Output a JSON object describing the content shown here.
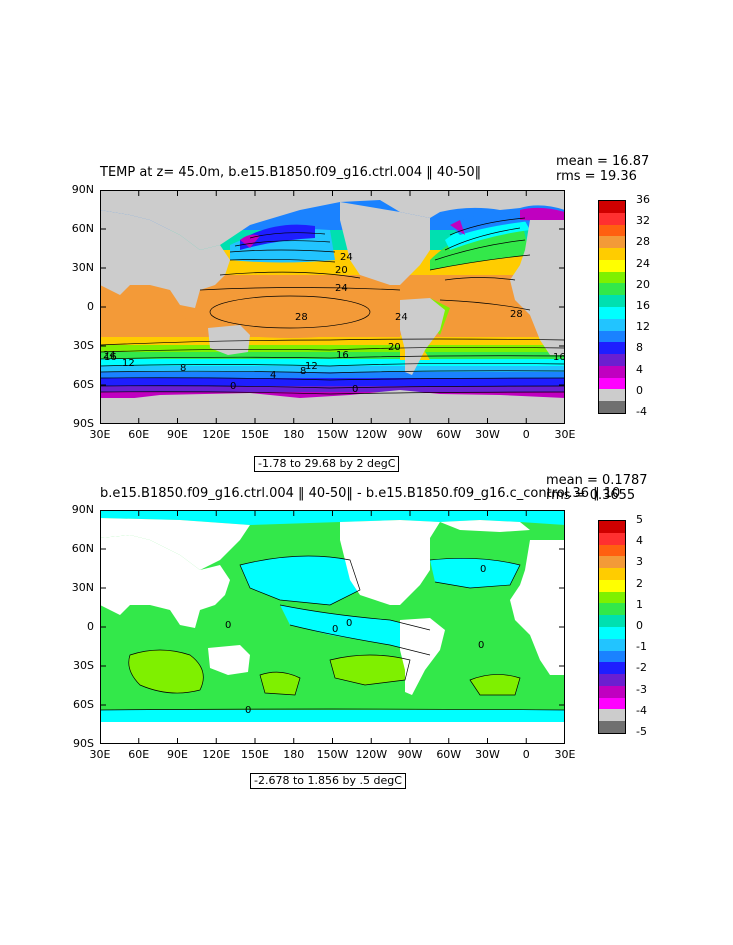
{
  "panel1": {
    "title": "TEMP at z=  45.0m, b.e15.B1850.f09_g16.ctrl.004 ‖ 40-50‖",
    "mean_label": "mean = 16.87",
    "rms_label": "rms = 19.36",
    "range_label": "-1.78 to 29.68 by 2 degC",
    "contour_labels": [
      "28",
      "24",
      "24",
      "20",
      "20",
      "16",
      "16",
      "12",
      "12",
      "8",
      "8",
      "4",
      "0",
      "0",
      "28",
      "24",
      "24",
      "16"
    ],
    "legend": {
      "labels": [
        "36",
        "32",
        "28",
        "24",
        "20",
        "16",
        "12",
        "8",
        "4",
        "0",
        "-4"
      ],
      "colors": [
        "#d00000",
        "#ff3030",
        "#ff6010",
        "#f39a38",
        "#ffcc00",
        "#ffff00",
        "#7ff000",
        "#33e84a",
        "#00e0b0",
        "#00ffff",
        "#22c4ff",
        "#1a82ff",
        "#1e1eff",
        "#6a1fd0",
        "#c000c0",
        "#ff00ff",
        "#cccccc",
        "#707070"
      ]
    }
  },
  "panel2": {
    "title": "b.e15.B1850.f09_g16.ctrl.004 ‖ 40-50‖ - b.e15.B1850.f09_g16.c_control.36 ‖ 10",
    "mean_label": "mean = 0.1787",
    "rms_label": "rms = 0.3655",
    "range_label": "-2.678 to 1.856 by .5 degC",
    "contour_labels": [
      "0",
      "0",
      "0",
      "0",
      "0",
      "0"
    ],
    "legend": {
      "labels": [
        "5",
        "4",
        "3",
        "2",
        "1",
        "0",
        "-1",
        "-2",
        "-3",
        "-4",
        "-5"
      ],
      "colors": [
        "#d00000",
        "#ff3030",
        "#ff6010",
        "#f39a38",
        "#ffcc00",
        "#ffff00",
        "#7ff000",
        "#33e84a",
        "#00e0b0",
        "#00ffff",
        "#22c4ff",
        "#1a82ff",
        "#1e1eff",
        "#6a1fd0",
        "#c000c0",
        "#ff00ff",
        "#cccccc",
        "#707070"
      ]
    }
  },
  "axes": {
    "y_ticks": [
      "90N",
      "60N",
      "30N",
      "0",
      "30S",
      "60S",
      "90S"
    ],
    "x_ticks": [
      "30E",
      "60E",
      "90E",
      "120E",
      "150E",
      "180",
      "150W",
      "120W",
      "90W",
      "60W",
      "30W",
      "0",
      "30E"
    ]
  },
  "colors": {
    "land": "#cccccc",
    "land_diff": "#ffffff",
    "diff_zero": "#33e84a",
    "diff_neg": "#00ffff",
    "diff_pos": "#7ff000",
    "diff_pos_strong": "#ffff00"
  }
}
